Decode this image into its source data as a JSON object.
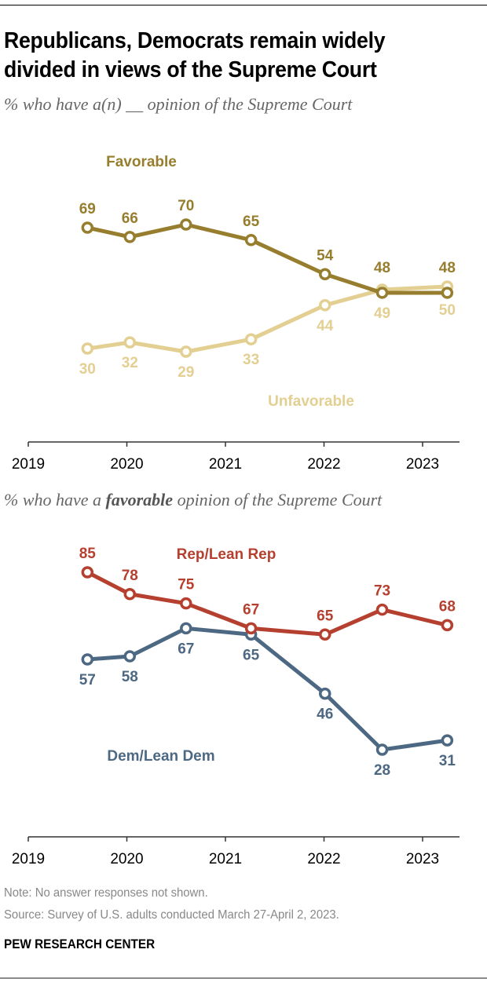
{
  "header": {
    "title_line1": "Republicans, Democrats remain widely",
    "title_line2": "divided in views of the Supreme Court"
  },
  "chart_data": [
    {
      "type": "line",
      "subtitle": "% who have a(n) __ opinion of the Supreme Court",
      "x": [
        2019.6,
        2020.03,
        2020.6,
        2021.26,
        2022.01,
        2022.59,
        2023.25
      ],
      "xticks": [
        2019,
        2020,
        2021,
        2022,
        2023
      ],
      "xtick_labels": [
        "2019",
        "2020",
        "2021",
        "2022",
        "2023"
      ],
      "xlim": [
        2019,
        2023.4
      ],
      "series": [
        {
          "name": "Favorable",
          "color": "#977d2e",
          "values": [
            69,
            66,
            70,
            65,
            54,
            48,
            48
          ],
          "label_pos": [
            "above",
            "above",
            "above",
            "above",
            "above",
            "above",
            "above"
          ]
        },
        {
          "name": "Unfavorable",
          "color": "#e2cf91",
          "values": [
            30,
            32,
            29,
            33,
            44,
            49,
            50
          ],
          "label_pos": [
            "below",
            "below",
            "below",
            "below",
            "below",
            "below",
            "below"
          ]
        }
      ],
      "legend": {
        "Favorable": "top-left",
        "Unfavorable": "bottom-right"
      },
      "grid": false
    },
    {
      "type": "line",
      "subtitle_pre": "% who have a ",
      "subtitle_bold": "favorable",
      "subtitle_post": " opinion of the Supreme Court",
      "x": [
        2019.6,
        2020.03,
        2020.6,
        2021.26,
        2022.01,
        2022.59,
        2023.25
      ],
      "xticks": [
        2019,
        2020,
        2021,
        2022,
        2023
      ],
      "xtick_labels": [
        "2019",
        "2020",
        "2021",
        "2022",
        "2023"
      ],
      "xlim": [
        2019,
        2023.4
      ],
      "series": [
        {
          "name": "Rep/Lean Rep",
          "color": "#b5402f",
          "values": [
            85,
            78,
            75,
            67,
            65,
            73,
            68
          ],
          "label_pos": [
            "above",
            "above",
            "above",
            "above",
            "above",
            "above",
            "above"
          ]
        },
        {
          "name": "Dem/Lean Dem",
          "color": "#4d6882",
          "values": [
            57,
            58,
            67,
            65,
            46,
            28,
            31
          ],
          "label_pos": [
            "below",
            "below",
            "below",
            "below",
            "below",
            "below",
            "below"
          ]
        }
      ],
      "legend": {
        "Rep/Lean Rep": "top-center",
        "Dem/Lean Dem": "bottom-left"
      },
      "grid": false
    }
  ],
  "footer": {
    "note": "Note: No answer responses not shown.",
    "source": "Source: Survey of U.S. adults conducted March 27-April 2, 2023.",
    "brand": "PEW RESEARCH CENTER"
  }
}
